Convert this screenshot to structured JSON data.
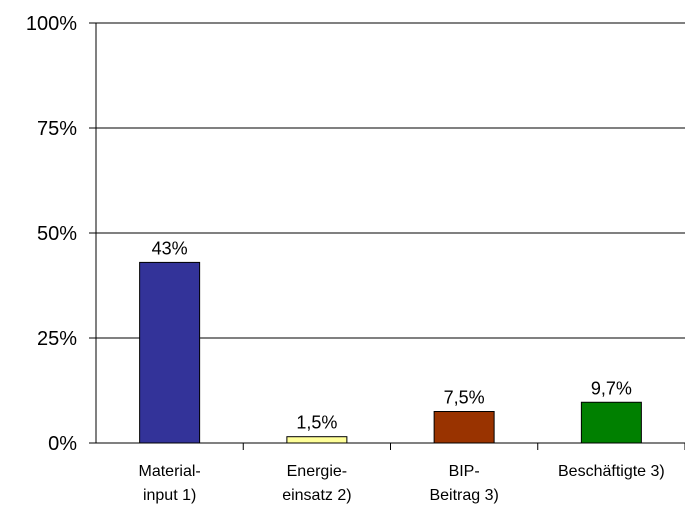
{
  "chart_data": {
    "type": "bar",
    "categories": [
      [
        "Material-",
        "input 1)"
      ],
      [
        "Energie-",
        "einsatz 2)"
      ],
      [
        "BIP-",
        "Beitrag 3)"
      ],
      [
        "Beschäftigte 3)"
      ]
    ],
    "values": [
      43,
      1.5,
      7.5,
      9.7
    ],
    "data_labels": [
      "43%",
      "1,5%",
      "7,5%",
      "9,7%"
    ],
    "bar_colors": [
      "#333399",
      "#ffff99",
      "#993300",
      "#008000"
    ],
    "y_ticks": [
      {
        "value": 0,
        "label": "0%"
      },
      {
        "value": 25,
        "label": "25%"
      },
      {
        "value": 50,
        "label": "50%"
      },
      {
        "value": 75,
        "label": "75%"
      },
      {
        "value": 100,
        "label": "100%"
      }
    ],
    "ylim": [
      0,
      100
    ],
    "grid": true,
    "title": "",
    "xlabel": "",
    "ylabel": ""
  }
}
